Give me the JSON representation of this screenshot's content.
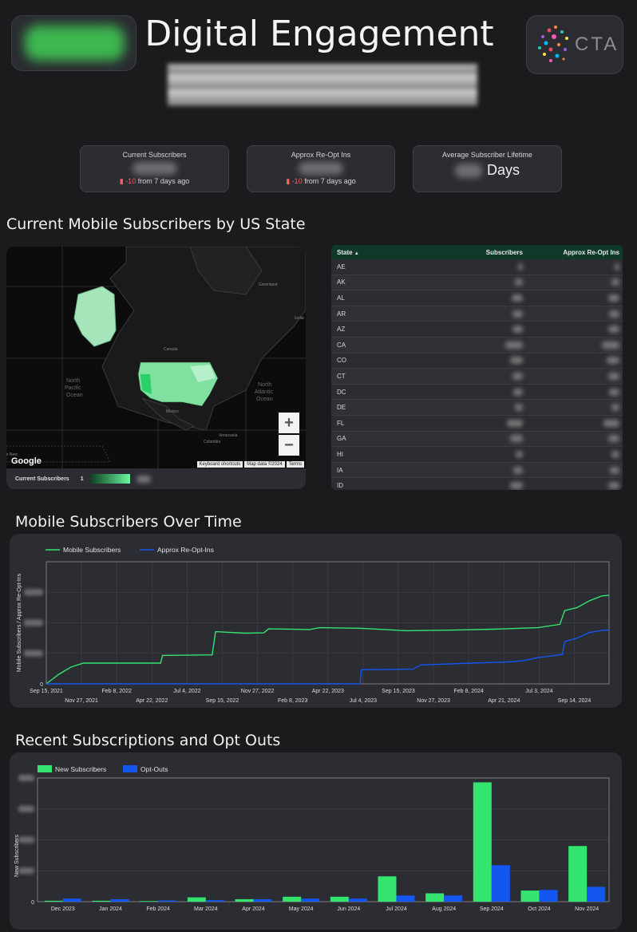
{
  "header": {
    "title": "Digital Engagement",
    "right_logo_text": "CTA"
  },
  "kpis": [
    {
      "label": "Current Subscribers",
      "delta": "-10",
      "delta_suffix": " from 7 days ago"
    },
    {
      "label": "Approx Re-Opt Ins",
      "delta": "-10",
      "delta_suffix": " from 7 days ago"
    },
    {
      "label": "Average Subscriber Lifetime",
      "unit": "Days"
    }
  ],
  "map_section": {
    "title": "Current Mobile Subscribers by US State",
    "labels": {
      "greenland": "Greenland",
      "iceland": "Icelar",
      "canada": "Canada",
      "mexico": "Mexico",
      "venezuela": "Venezuela",
      "colombia": "Colombia",
      "north_pacific": "North\nPacific\nOcean",
      "north_atlantic": "North\nAtlantic\nOcean",
      "new": "s New"
    },
    "google": "Google",
    "attribution": [
      "Keyboard shortcuts",
      "Map data ©2024",
      "Terms"
    ],
    "zoom_in": "+",
    "zoom_out": "−",
    "legend_label": "Current Subscribers",
    "legend_min": "1"
  },
  "state_table": {
    "columns": [
      "State",
      "Subscribers",
      "Approx Re-Opt Ins"
    ],
    "sort_indicator": "▲",
    "states": [
      "AE",
      "AK",
      "AL",
      "AR",
      "AZ",
      "CA",
      "CO",
      "CT",
      "DC",
      "DE",
      "FL",
      "GA",
      "HI",
      "IA",
      "ID"
    ]
  },
  "line_section": {
    "title": "Mobile Subscribers Over Time"
  },
  "bar_section": {
    "title": "Recent Subscriptions and Opt Outs"
  },
  "colors": {
    "green": "#33e46f",
    "blue": "#1456f0",
    "card": "#2b2d33",
    "background": "#1b1b1d"
  },
  "chart_data": [
    {
      "type": "line",
      "xlabel": "",
      "ylabel": "Mobile Subscribers / Approx Re-Opt-Ins",
      "x_ticks_top": [
        "Sep 15, 2021",
        "Feb 8, 2022",
        "Jul 4, 2022",
        "Nov 27, 2022",
        "Apr 22, 2023",
        "Sep 15, 2023",
        "Feb 8, 2024",
        "Jul 3, 2024"
      ],
      "x_ticks_bottom": [
        "Nov 27, 2021",
        "Apr 22, 2022",
        "Sep 15, 2022",
        "Feb 8, 2023",
        "Jul 4, 2023",
        "Nov 27, 2023",
        "Apr 21, 2024",
        "Sep 14, 2024"
      ],
      "x_range": [
        "2021-09-15",
        "2024-11-25"
      ],
      "y_range": [
        0,
        4
      ],
      "y_tick_values": [
        0,
        1,
        2,
        3
      ],
      "y_tick_labels_visible": [
        "0"
      ],
      "grid": true,
      "legend_position": "top-left",
      "series": [
        {
          "name": "Mobile Subscribers",
          "color": "#33e46f",
          "points": [
            [
              "2021-09-15",
              0.0
            ],
            [
              "2021-10-10",
              0.3
            ],
            [
              "2021-11-05",
              0.55
            ],
            [
              "2021-12-01",
              0.68
            ],
            [
              "2022-03-01",
              0.68
            ],
            [
              "2022-05-10",
              0.68
            ],
            [
              "2022-05-14",
              0.93
            ],
            [
              "2022-08-25",
              0.95
            ],
            [
              "2022-09-01",
              1.71
            ],
            [
              "2022-11-01",
              1.66
            ],
            [
              "2022-12-10",
              1.67
            ],
            [
              "2022-12-20",
              1.8
            ],
            [
              "2023-03-15",
              1.78
            ],
            [
              "2023-04-05",
              1.84
            ],
            [
              "2023-07-01",
              1.82
            ],
            [
              "2023-10-01",
              1.74
            ],
            [
              "2024-01-01",
              1.76
            ],
            [
              "2024-04-01",
              1.79
            ],
            [
              "2024-07-01",
              1.84
            ],
            [
              "2024-08-15",
              1.95
            ],
            [
              "2024-08-25",
              2.4
            ],
            [
              "2024-09-20",
              2.5
            ],
            [
              "2024-10-15",
              2.72
            ],
            [
              "2024-11-10",
              2.88
            ],
            [
              "2024-11-25",
              2.9
            ]
          ]
        },
        {
          "name": "Approx Re-Opt-Ins",
          "color": "#1456f0",
          "points": [
            [
              "2021-09-15",
              0.0
            ],
            [
              "2023-06-28",
              0.0
            ],
            [
              "2023-06-30",
              0.46
            ],
            [
              "2023-10-15",
              0.48
            ],
            [
              "2023-11-01",
              0.62
            ],
            [
              "2024-02-15",
              0.68
            ],
            [
              "2024-05-01",
              0.72
            ],
            [
              "2024-06-01",
              0.76
            ],
            [
              "2024-07-01",
              0.86
            ],
            [
              "2024-08-20",
              0.96
            ],
            [
              "2024-08-25",
              1.38
            ],
            [
              "2024-09-20",
              1.5
            ],
            [
              "2024-10-15",
              1.68
            ],
            [
              "2024-11-10",
              1.75
            ],
            [
              "2024-11-25",
              1.77
            ]
          ]
        }
      ]
    },
    {
      "type": "bar",
      "xlabel": "",
      "ylabel": "New Subscribers",
      "categories": [
        "Dec 2023",
        "Jan 2024",
        "Feb 2024",
        "Mar 2024",
        "Apr 2024",
        "May 2024",
        "Jun 2024",
        "Jul 2024",
        "Aug 2024",
        "Sep 2024",
        "Oct 2024",
        "Nov 2024"
      ],
      "y_range": [
        0,
        4
      ],
      "y_tick_values": [
        0,
        1,
        2,
        3,
        4
      ],
      "y_tick_labels_visible": [
        "0"
      ],
      "legend_position": "top-left",
      "series": [
        {
          "name": "New Subscribers",
          "color": "#33e46f",
          "values": [
            0.03,
            0.03,
            0.02,
            0.14,
            0.08,
            0.16,
            0.16,
            0.82,
            0.27,
            3.86,
            0.36,
            1.8
          ]
        },
        {
          "name": "Opt-Outs",
          "color": "#1456f0",
          "values": [
            0.1,
            0.08,
            0.04,
            0.05,
            0.08,
            0.1,
            0.1,
            0.2,
            0.2,
            1.18,
            0.38,
            0.48
          ]
        }
      ]
    }
  ]
}
